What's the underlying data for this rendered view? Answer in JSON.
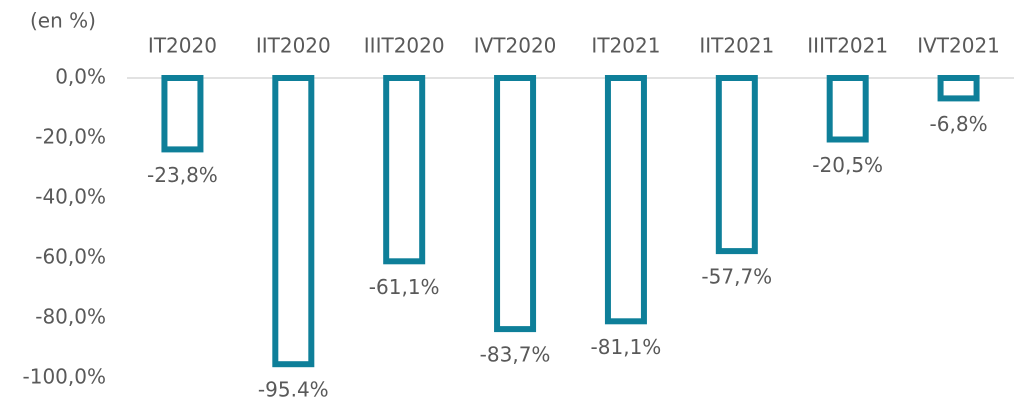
{
  "chart_data": {
    "type": "bar",
    "y_label": "(en %)",
    "categories": [
      "IT2020",
      "IIT2020",
      "IIIT2020",
      "IVT2020",
      "IT2021",
      "IIT2021",
      "IIIT2021",
      "IVT2021"
    ],
    "values": [
      -23.8,
      -95.4,
      -61.1,
      -83.7,
      -81.1,
      -57.7,
      -20.5,
      -6.8
    ],
    "value_labels": [
      "-23,8%",
      "-95.4%",
      "-61,1%",
      "-83,7%",
      "-81,1%",
      "-57,7%",
      "-20,5%",
      "-6,8%"
    ],
    "color": "#0e7f99",
    "ylim": [
      -100,
      0
    ],
    "yticks": [
      {
        "value": 0,
        "label": "0,0%"
      },
      {
        "value": -20,
        "label": "-20,0%"
      },
      {
        "value": -40,
        "label": "-40,0%"
      },
      {
        "value": -60,
        "label": "-60,0%"
      },
      {
        "value": -80,
        "label": "-80,0%"
      },
      {
        "value": -100,
        "label": "-100,0%"
      }
    ]
  }
}
